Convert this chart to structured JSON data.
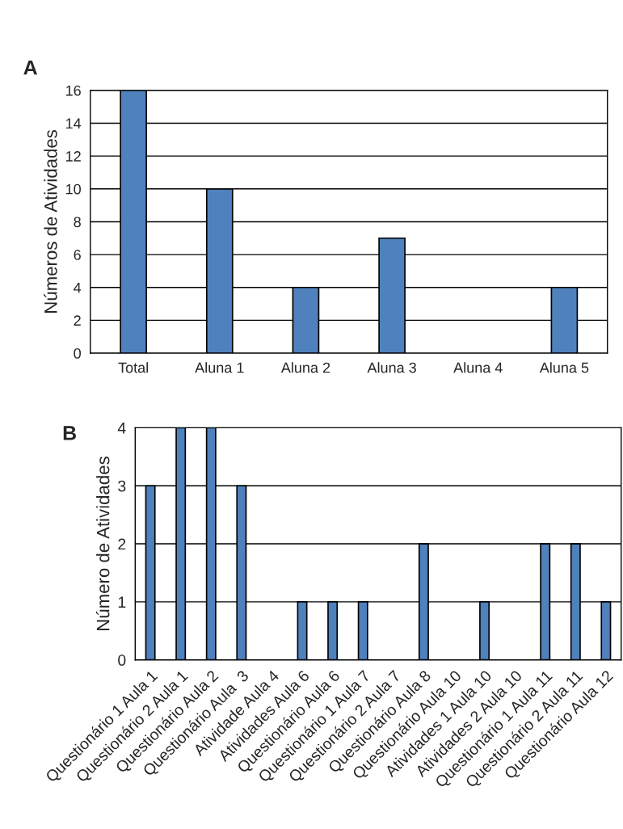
{
  "chart_data": [
    {
      "type": "bar",
      "title": "A",
      "ylabel": "Números de Atividades",
      "categories": [
        "Total",
        "Aluna 1",
        "Aluna 2",
        "Aluna 3",
        "Aluna 4",
        "Aluna 5"
      ],
      "values": [
        16,
        10,
        4,
        7,
        0,
        4
      ],
      "color": "#4f81bd",
      "ylim": [
        0,
        16
      ],
      "yticks": [
        0,
        2,
        4,
        6,
        8,
        10,
        12,
        14,
        16
      ],
      "grid": "y"
    },
    {
      "type": "bar",
      "title": "B",
      "ylabel": "Número de Atividades",
      "categories": [
        "Questionário 1 Aula 1",
        "Questionário 2 Aula 1",
        "Questionário Aula 2",
        "Questionário Aula  3",
        "Atividade Aula 4",
        "Atividades Aula 6",
        "Questionário Aula 6",
        "Questionário 1 Aula 7",
        "Questionário 2 Aula 7",
        "Questionário Aula 8",
        "Questionário Aula 10",
        "Atividades 1 Aula 10",
        "Atividades 2 Aula 10",
        "Questionário 1 Aula 11",
        "Questionário 2 Aula 11",
        "Questionário Aula 12"
      ],
      "values": [
        3,
        4,
        4,
        3,
        0,
        1,
        1,
        1,
        0,
        2,
        0,
        1,
        0,
        2,
        2,
        1
      ],
      "color": "#4f81bd",
      "ylim": [
        0,
        4
      ],
      "yticks": [
        0,
        1,
        2,
        3,
        4
      ],
      "grid": "y"
    }
  ]
}
